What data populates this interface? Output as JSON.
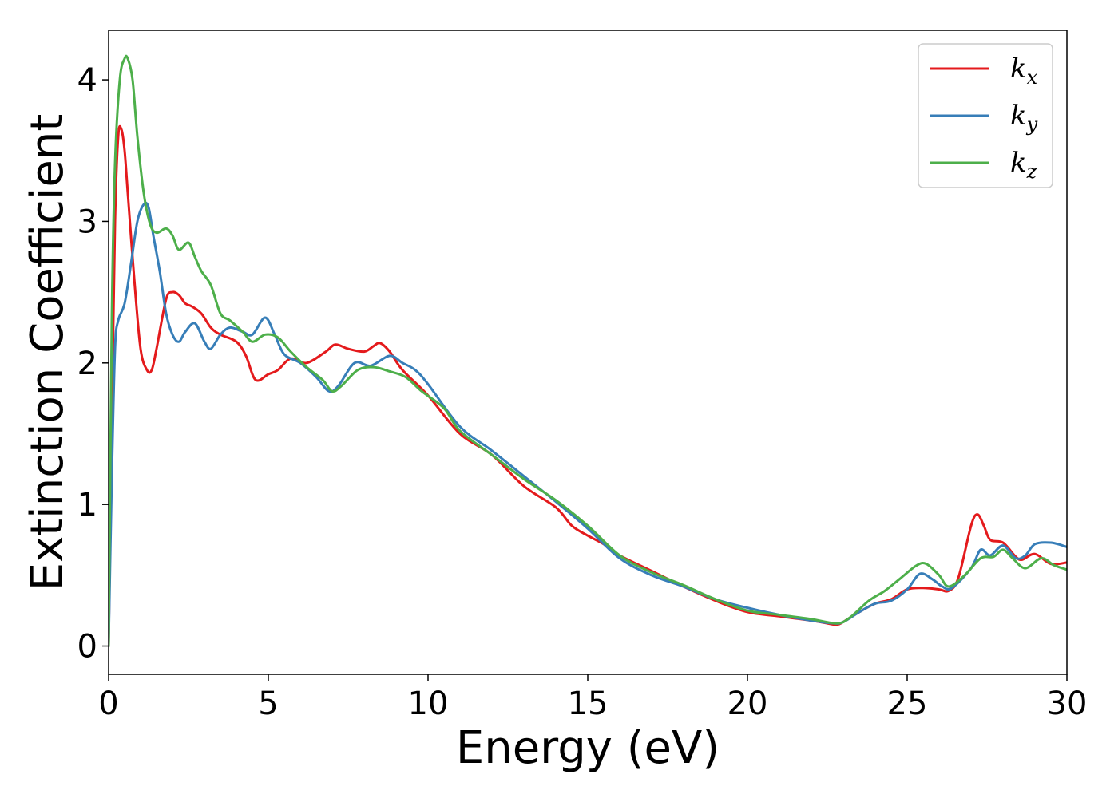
{
  "chart_data": {
    "type": "line",
    "xlabel": "Energy (eV)",
    "ylabel": "Extinction Coefficient",
    "xlim": [
      0,
      30
    ],
    "ylim": [
      -0.2,
      4.35
    ],
    "xticks": [
      0,
      5,
      10,
      15,
      20,
      25,
      30
    ],
    "yticks": [
      0,
      1,
      2,
      3,
      4
    ],
    "xtick_labels": [
      "0",
      "5",
      "10",
      "15",
      "20",
      "25",
      "30"
    ],
    "ytick_labels": [
      "0",
      "1",
      "2",
      "3",
      "4"
    ],
    "grid": false,
    "legend_position": "top-right",
    "series": [
      {
        "name": "k",
        "subscript": "x",
        "color": "#e41a1c",
        "x": [
          0,
          0.1,
          0.2,
          0.3,
          0.4,
          0.5,
          0.6,
          0.8,
          1.0,
          1.2,
          1.35,
          1.5,
          1.8,
          2.0,
          2.2,
          2.4,
          2.6,
          2.9,
          3.2,
          3.5,
          4.0,
          4.3,
          4.6,
          5.0,
          5.3,
          5.7,
          6.2,
          6.8,
          7.1,
          7.5,
          8.0,
          8.3,
          8.5,
          8.8,
          9.2,
          10.0,
          11.0,
          12.0,
          13.0,
          14.0,
          14.5,
          15.0,
          15.5,
          16.0,
          17.0,
          18.0,
          19.0,
          20.0,
          21.0,
          22.0,
          22.5,
          22.8,
          23.0,
          23.5,
          24.0,
          24.5,
          25.0,
          25.5,
          26.0,
          26.3,
          26.6,
          27.0,
          27.2,
          27.4,
          27.6,
          28.0,
          28.4,
          28.6,
          29.0,
          29.5,
          30.0
        ],
        "values": [
          0,
          1.6,
          3.0,
          3.6,
          3.65,
          3.5,
          3.2,
          2.6,
          2.1,
          1.95,
          1.95,
          2.1,
          2.45,
          2.5,
          2.48,
          2.42,
          2.4,
          2.35,
          2.25,
          2.2,
          2.15,
          2.05,
          1.88,
          1.92,
          1.95,
          2.03,
          2.0,
          2.08,
          2.13,
          2.1,
          2.08,
          2.12,
          2.14,
          2.08,
          1.95,
          1.77,
          1.5,
          1.35,
          1.13,
          0.98,
          0.85,
          0.78,
          0.72,
          0.64,
          0.53,
          0.42,
          0.32,
          0.24,
          0.21,
          0.18,
          0.16,
          0.15,
          0.17,
          0.24,
          0.3,
          0.33,
          0.4,
          0.41,
          0.4,
          0.39,
          0.48,
          0.85,
          0.93,
          0.85,
          0.75,
          0.73,
          0.63,
          0.61,
          0.65,
          0.58,
          0.59
        ]
      },
      {
        "name": "k",
        "subscript": "y",
        "color": "#377eb8",
        "x": [
          0,
          0.1,
          0.2,
          0.3,
          0.5,
          0.7,
          0.9,
          1.1,
          1.25,
          1.4,
          1.6,
          1.8,
          2.0,
          2.2,
          2.4,
          2.7,
          3.0,
          3.2,
          3.5,
          3.8,
          4.2,
          4.5,
          4.9,
          5.2,
          5.5,
          6.0,
          6.5,
          6.9,
          7.2,
          7.7,
          8.2,
          8.8,
          9.2,
          9.6,
          10.0,
          11.0,
          12.0,
          13.0,
          14.0,
          15.0,
          16.0,
          17.0,
          18.0,
          19.0,
          20.0,
          21.0,
          22.0,
          22.7,
          23.0,
          23.5,
          24.0,
          24.5,
          25.0,
          25.4,
          25.8,
          26.1,
          26.4,
          27.0,
          27.3,
          27.6,
          28.0,
          28.4,
          28.7,
          29.0,
          29.5,
          30.0
        ],
        "values": [
          0,
          1.2,
          2.1,
          2.3,
          2.42,
          2.7,
          3.0,
          3.12,
          3.1,
          2.9,
          2.65,
          2.35,
          2.2,
          2.15,
          2.22,
          2.28,
          2.15,
          2.1,
          2.2,
          2.25,
          2.22,
          2.2,
          2.32,
          2.2,
          2.06,
          2.0,
          1.9,
          1.8,
          1.84,
          2.0,
          1.98,
          2.05,
          2.0,
          1.95,
          1.85,
          1.55,
          1.38,
          1.2,
          1.02,
          0.83,
          0.62,
          0.5,
          0.42,
          0.33,
          0.27,
          0.22,
          0.18,
          0.16,
          0.17,
          0.24,
          0.3,
          0.32,
          0.4,
          0.51,
          0.47,
          0.42,
          0.41,
          0.55,
          0.68,
          0.64,
          0.71,
          0.62,
          0.64,
          0.72,
          0.73,
          0.7
        ]
      },
      {
        "name": "k",
        "subscript": "z",
        "color": "#4daf4a",
        "x": [
          0,
          0.1,
          0.2,
          0.35,
          0.5,
          0.6,
          0.75,
          0.9,
          1.1,
          1.3,
          1.5,
          1.8,
          2.0,
          2.2,
          2.5,
          2.7,
          2.9,
          3.2,
          3.5,
          3.8,
          4.2,
          4.5,
          4.9,
          5.3,
          5.7,
          6.2,
          6.7,
          7.0,
          7.3,
          7.8,
          8.3,
          8.8,
          9.3,
          9.8,
          10.5,
          11.0,
          12.0,
          13.0,
          14.0,
          15.0,
          16.0,
          17.0,
          18.0,
          19.0,
          20.0,
          21.0,
          22.0,
          22.8,
          23.2,
          23.8,
          24.3,
          24.8,
          25.3,
          25.6,
          26.0,
          26.3,
          26.8,
          27.3,
          27.7,
          28.0,
          28.3,
          28.7,
          29.2,
          29.6,
          30.0
        ],
        "values": [
          0,
          2.3,
          3.4,
          4.0,
          4.15,
          4.15,
          4.0,
          3.6,
          3.2,
          2.98,
          2.92,
          2.95,
          2.9,
          2.8,
          2.85,
          2.75,
          2.65,
          2.55,
          2.35,
          2.3,
          2.22,
          2.15,
          2.2,
          2.18,
          2.08,
          1.97,
          1.88,
          1.8,
          1.84,
          1.95,
          1.97,
          1.94,
          1.9,
          1.8,
          1.68,
          1.52,
          1.35,
          1.18,
          1.03,
          0.85,
          0.64,
          0.52,
          0.43,
          0.33,
          0.25,
          0.22,
          0.19,
          0.16,
          0.2,
          0.32,
          0.39,
          0.48,
          0.57,
          0.58,
          0.5,
          0.42,
          0.5,
          0.62,
          0.63,
          0.68,
          0.62,
          0.55,
          0.62,
          0.57,
          0.54
        ]
      }
    ]
  }
}
